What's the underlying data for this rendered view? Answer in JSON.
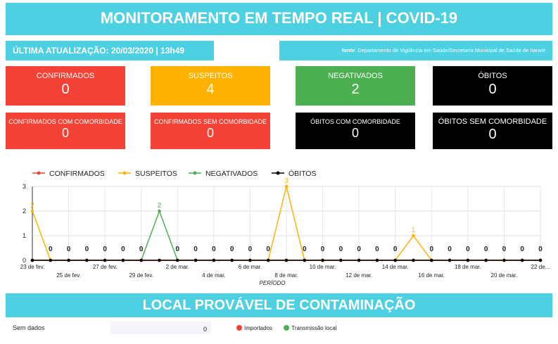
{
  "header": {
    "title": "MONITORAMENTO EM TEMPO REAL | COVID-19",
    "update": "ÚLTIMA ATUALIZAÇÃO: 20/03/2020 | 13h49",
    "source_label": "fonte",
    "source_text": ": Departamento de Vigilância em Saúde/Secretaria Municipal de Saúde de Itararé"
  },
  "cards": {
    "confirmados": {
      "label": "CONFIRMADOS",
      "value": "0"
    },
    "suspeitos": {
      "label": "SUSPEITOS",
      "value": "4"
    },
    "negativados": {
      "label": "NEGATIVADOS",
      "value": "2"
    },
    "obitos": {
      "label": "ÓBITOS",
      "value": "0"
    },
    "conf_com": {
      "label": "CONFIRMADOS COM COMORBIDADE",
      "value": "0"
    },
    "conf_sem": {
      "label": "CONFIRMADOS SEM COMORBIDADE",
      "value": "0"
    },
    "obitos_com": {
      "label": "ÓBITOS COM COMORBIDADE",
      "value": "0"
    },
    "obitos_sem": {
      "label": "ÓBITOS SEM COMORBIDADE",
      "value": "0"
    }
  },
  "chart_data": {
    "type": "line",
    "xlabel": "PERÍODO",
    "ylabel": "",
    "ylim": [
      0,
      3
    ],
    "yticks": [
      0,
      1,
      2,
      3
    ],
    "grid": true,
    "legend_position": "top-left",
    "x_tick_labels": [
      "23 de fev.",
      "25 de fev.",
      "27 de fev.",
      "29 de fev.",
      "2 de mar.",
      "4 de mar.",
      "6 de mar.",
      "8 de mar.",
      "10 de mar.",
      "12 de mar.",
      "14 de mar.",
      "16 de mar.",
      "18 de mar.",
      "20 de mar.",
      "22 de..."
    ],
    "x": [
      "23/02",
      "24/02",
      "25/02",
      "26/02",
      "27/02",
      "28/02",
      "29/02",
      "01/03",
      "02/03",
      "03/03",
      "04/03",
      "05/03",
      "06/03",
      "07/03",
      "08/03",
      "09/03",
      "10/03",
      "11/03",
      "12/03",
      "13/03",
      "14/03",
      "15/03",
      "16/03",
      "17/03",
      "18/03",
      "19/03",
      "20/03",
      "21/03",
      "22/03"
    ],
    "series": [
      {
        "name": "CONFIRMADOS",
        "color": "#f44336",
        "values": [
          0,
          0,
          0,
          0,
          0,
          0,
          0,
          0,
          0,
          0,
          0,
          0,
          0,
          0,
          0,
          0,
          0,
          0,
          0,
          0,
          0,
          0,
          0,
          0,
          0,
          0,
          0,
          0,
          0
        ]
      },
      {
        "name": "SUSPEITOS",
        "color": "#ffb300",
        "values": [
          2,
          0,
          0,
          0,
          0,
          0,
          0,
          0,
          0,
          0,
          0,
          0,
          0,
          0,
          3,
          0,
          0,
          0,
          0,
          0,
          0,
          1,
          0,
          0,
          0,
          0,
          0,
          0,
          0
        ]
      },
      {
        "name": "NEGATIVADOS",
        "color": "#4caf50",
        "values": [
          0,
          0,
          0,
          0,
          0,
          0,
          0,
          2,
          0,
          0,
          0,
          0,
          0,
          0,
          0,
          0,
          0,
          0,
          0,
          0,
          0,
          0,
          0,
          0,
          0,
          0,
          0,
          0,
          0
        ]
      },
      {
        "name": "ÓBITOS",
        "color": "#000000",
        "values": [
          0,
          0,
          0,
          0,
          0,
          0,
          0,
          0,
          0,
          0,
          0,
          0,
          0,
          0,
          0,
          0,
          0,
          0,
          0,
          0,
          0,
          0,
          0,
          0,
          0,
          0,
          0,
          0,
          0
        ]
      }
    ]
  },
  "local": {
    "title": "LOCAL PROVÁVEL DE CONTAMINAÇÃO",
    "no_data_label": "Sem dados",
    "no_data_value": "0",
    "legend": [
      {
        "label": "Importados",
        "color": "#f44336"
      },
      {
        "label": "Transmissão local",
        "color": "#4caf50"
      }
    ]
  }
}
